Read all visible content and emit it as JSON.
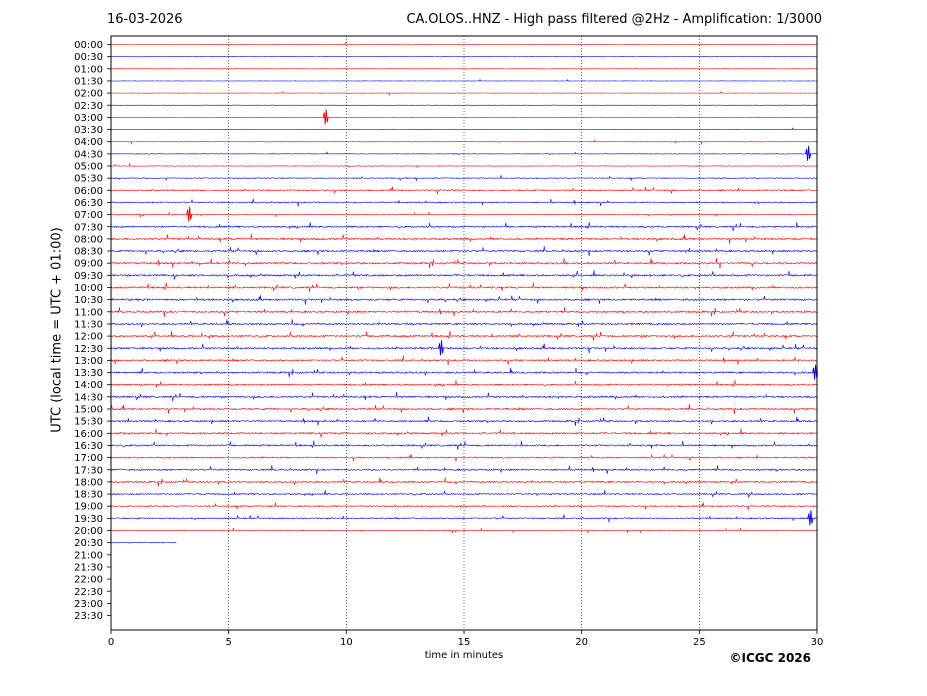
{
  "header": {
    "date": "16-03-2026",
    "title": "CA.OLOS..HNZ - High pass filtered @2Hz - Amplification: 1/3000"
  },
  "footer": {
    "copyright": "©ICGC 2026"
  },
  "colors": {
    "trace_a": "#ff0000",
    "trace_b": "#0000ff",
    "axes": "#000000",
    "grid": "#000000"
  },
  "chart_data": {
    "type": "line",
    "xlabel": "time in minutes",
    "ylabel": "UTC (local time = UTC + 01:00)",
    "xlim": [
      0,
      30
    ],
    "x_ticks": [
      0,
      5,
      10,
      15,
      20,
      25,
      30
    ],
    "vertical_grid": "dotted at 5, 10, 15, 20, 25",
    "rows": [
      "00:00",
      "00:30",
      "01:00",
      "01:30",
      "02:00",
      "02:30",
      "03:00",
      "03:30",
      "04:00",
      "04:30",
      "05:00",
      "05:30",
      "06:00",
      "06:30",
      "07:00",
      "07:30",
      "08:00",
      "08:30",
      "09:00",
      "09:30",
      "10:00",
      "10:30",
      "11:00",
      "11:30",
      "12:00",
      "12:30",
      "13:00",
      "13:30",
      "14:00",
      "14:30",
      "15:00",
      "15:30",
      "16:00",
      "16:30",
      "17:00",
      "17:30",
      "18:00",
      "18:30",
      "19:00",
      "19:30",
      "20:00",
      "20:30",
      "21:00",
      "21:30",
      "22:00",
      "22:30",
      "23:00",
      "23:30"
    ],
    "row_colors": "alternating red / blue starting with red",
    "data_end": {
      "row": "20:30",
      "minute": 2.8
    },
    "activity": {
      "description": "relative seismic noise amplitude per row (0 = quiet, 1 = very noisy)",
      "levels": [
        0.05,
        0.03,
        0.03,
        0.04,
        0.05,
        0.03,
        0.08,
        0.05,
        0.15,
        0.12,
        0.18,
        0.35,
        0.6,
        0.55,
        0.25,
        0.75,
        0.85,
        0.8,
        0.85,
        0.85,
        0.8,
        0.85,
        0.8,
        0.75,
        0.85,
        0.85,
        0.8,
        0.75,
        0.7,
        0.8,
        0.8,
        0.75,
        0.8,
        0.75,
        0.6,
        0.7,
        0.7,
        0.6,
        0.6,
        0.55,
        0.3,
        0.2,
        0,
        0,
        0,
        0,
        0,
        0
      ]
    },
    "notable_spikes": [
      {
        "row": "04:30",
        "minute": 29.6
      },
      {
        "row": "12:30",
        "minute": 14.0
      },
      {
        "row": "13:30",
        "minute": 29.9
      },
      {
        "row": "19:30",
        "minute": 29.7
      },
      {
        "row": "03:00",
        "minute": 9.1
      },
      {
        "row": "07:00",
        "minute": 3.3
      }
    ]
  }
}
